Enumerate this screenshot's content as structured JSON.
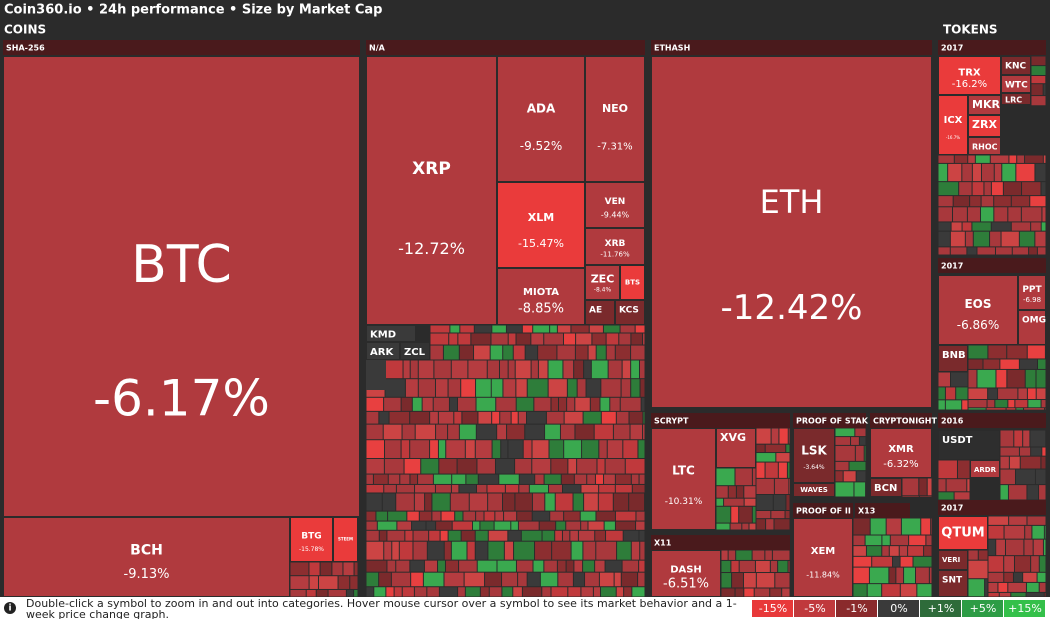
{
  "header": {
    "title": "Coin360.io • 24h performance • Size by Market Cap",
    "left_section": "COINS",
    "right_section": "TOKENS"
  },
  "groups": [
    "SHA-256",
    "N/A",
    "ETHASH",
    "2017",
    "SCRYPT",
    "X11",
    "PROOF OF STAK",
    "PROOF OF II",
    "CRYPTONIGHT",
    "X13",
    "2017",
    "2016",
    "2017"
  ],
  "tiles": [
    {
      "symbol": "BTC",
      "change": "-6.17%"
    },
    {
      "symbol": "BCH",
      "change": "-9.13%"
    },
    {
      "symbol": "BTG",
      "change": "-15.78%"
    },
    {
      "symbol": "STEEM"
    },
    {
      "symbol": "XRP",
      "change": "-12.72%"
    },
    {
      "symbol": "ADA",
      "change": "-9.52%"
    },
    {
      "symbol": "NEO",
      "change": "-7.31%"
    },
    {
      "symbol": "XLM",
      "change": "-15.47%"
    },
    {
      "symbol": "VEN",
      "change": "-9.44%"
    },
    {
      "symbol": "XRB",
      "change": "-11.76%"
    },
    {
      "symbol": "MIOTA",
      "change": "-8.85%"
    },
    {
      "symbol": "ZEC",
      "change": "-8.4%"
    },
    {
      "symbol": "BTS"
    },
    {
      "symbol": "AE"
    },
    {
      "symbol": "KCS"
    },
    {
      "symbol": "KMD"
    },
    {
      "symbol": "ARK"
    },
    {
      "symbol": "ZCL"
    },
    {
      "symbol": "ETH",
      "change": "-12.42%"
    },
    {
      "symbol": "LTC",
      "change": "-10.31%"
    },
    {
      "symbol": "XVG"
    },
    {
      "symbol": "DASH",
      "change": "-6.51%"
    },
    {
      "symbol": "LSK",
      "change": "-3.64%"
    },
    {
      "symbol": "WAVES"
    },
    {
      "symbol": "XEM",
      "change": "-11.84%"
    },
    {
      "symbol": "XMR",
      "change": "-6.32%"
    },
    {
      "symbol": "BCN"
    },
    {
      "symbol": "TRX",
      "change": "-16.2%"
    },
    {
      "symbol": "KNC"
    },
    {
      "symbol": "WTC"
    },
    {
      "symbol": "LRC"
    },
    {
      "symbol": "ICX",
      "change": "-16.7%"
    },
    {
      "symbol": "MKR"
    },
    {
      "symbol": "ZRX"
    },
    {
      "symbol": "RHOC"
    },
    {
      "symbol": "EOS",
      "change": "-6.86%"
    },
    {
      "symbol": "PPT",
      "change": "-6.98"
    },
    {
      "symbol": "OMG"
    },
    {
      "symbol": "BNB"
    },
    {
      "symbol": "USDT"
    },
    {
      "symbol": "ARDR"
    },
    {
      "symbol": "QTUM"
    },
    {
      "symbol": "VERI"
    },
    {
      "symbol": "SNT"
    }
  ],
  "footer": {
    "text": "Double-click a symbol to zoom in and out into categories. Hover mouse cursor over a symbol to see its market behavior and a 1-week price change graph."
  },
  "legend": [
    "-15%",
    "-5%",
    "-1%",
    "0%",
    "+1%",
    "+5%",
    "+15%"
  ]
}
